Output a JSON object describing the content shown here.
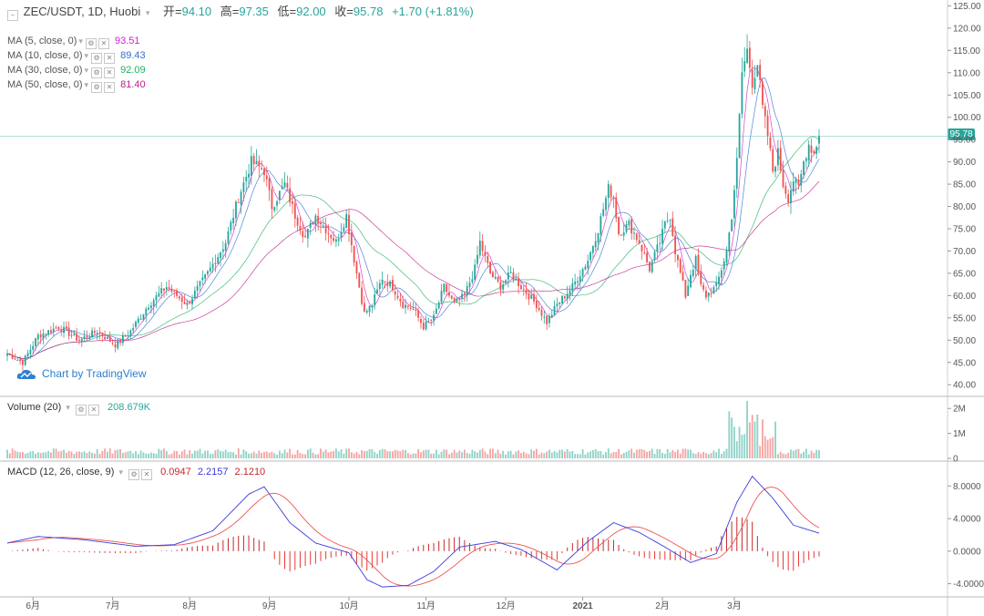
{
  "header": {
    "collapse_icon": "minus-square-icon",
    "symbol": "ZEC/USDT, 1D, Huobi",
    "open_label": "开=",
    "open": "94.10",
    "high_label": "高=",
    "high": "97.35",
    "low_label": "低=",
    "low": "92.00",
    "close_label": "收=",
    "close": "95.78",
    "change": "+1.70 (+1.81%)"
  },
  "ma_legends": [
    {
      "label": "MA (5, close, 0)",
      "value": "93.51",
      "color": "#d020d0"
    },
    {
      "label": "MA (10, close, 0)",
      "value": "89.43",
      "color": "#3070d0"
    },
    {
      "label": "MA (30, close, 0)",
      "value": "92.09",
      "color": "#20b060"
    },
    {
      "label": "MA (50, close, 0)",
      "value": "81.40",
      "color": "#c0208a"
    }
  ],
  "volume_legend": {
    "label": "Volume (20)",
    "value": "208.679K"
  },
  "macd_legend": {
    "label": "MACD (12, 26, close, 9)",
    "hist": "0.0947",
    "macd": "2.2157",
    "signal": "2.1210"
  },
  "watermark": "Chart by TradingView",
  "last_price_tag": "95.78",
  "colors": {
    "up": "#26a69a",
    "down": "#ef5350",
    "up_vol": "#8fd3c8",
    "down_vol": "#f5a5a3",
    "macd_line": "#3b3bdc",
    "signal_line": "#ef5350",
    "ma5": "#d020d0",
    "ma10": "#3070d0",
    "ma30": "#20b060",
    "ma50": "#c0208a"
  },
  "chart_data": {
    "type": "candlestick",
    "price_axis": {
      "ticks": [
        "125.00",
        "120.00",
        "115.00",
        "110.00",
        "105.00",
        "100.00",
        "95.00",
        "90.00",
        "85.00",
        "80.00",
        "75.00",
        "70.00",
        "65.00",
        "60.00",
        "55.00",
        "50.00",
        "45.00",
        "40.00"
      ],
      "ylim": [
        38,
        125.5
      ]
    },
    "volume_axis": {
      "ticks": [
        "2M",
        "1M",
        "0"
      ],
      "ylim": [
        0,
        2.3
      ]
    },
    "macd_axis": {
      "ticks": [
        "8.0000",
        "4.0000",
        "0.0000",
        "-4.0000"
      ],
      "ylim": [
        -5.5,
        10.5
      ]
    },
    "x_labels": [
      "6月",
      "7月",
      "8月",
      "9月",
      "10月",
      "11月",
      "12月",
      "2021",
      "2月",
      "3月"
    ],
    "close_anchors": [
      [
        0,
        47
      ],
      [
        6,
        45
      ],
      [
        12,
        51
      ],
      [
        20,
        53
      ],
      [
        28,
        50
      ],
      [
        35,
        52
      ],
      [
        42,
        49
      ],
      [
        48,
        52
      ],
      [
        55,
        58
      ],
      [
        62,
        62
      ],
      [
        70,
        58
      ],
      [
        78,
        65
      ],
      [
        85,
        72
      ],
      [
        90,
        82
      ],
      [
        95,
        90
      ],
      [
        100,
        88
      ],
      [
        103,
        80
      ],
      [
        108,
        85
      ],
      [
        112,
        78
      ],
      [
        116,
        73
      ],
      [
        120,
        78
      ],
      [
        124,
        75
      ],
      [
        128,
        72
      ],
      [
        132,
        78
      ],
      [
        136,
        65
      ],
      [
        139,
        56
      ],
      [
        142,
        58
      ],
      [
        146,
        64
      ],
      [
        150,
        62
      ],
      [
        154,
        58
      ],
      [
        158,
        57
      ],
      [
        162,
        53
      ],
      [
        166,
        55
      ],
      [
        170,
        62
      ],
      [
        174,
        58
      ],
      [
        178,
        60
      ],
      [
        182,
        66
      ],
      [
        184,
        72
      ],
      [
        188,
        65
      ],
      [
        192,
        62
      ],
      [
        196,
        65
      ],
      [
        200,
        62
      ],
      [
        206,
        58
      ],
      [
        210,
        54
      ],
      [
        214,
        58
      ],
      [
        220,
        62
      ],
      [
        226,
        68
      ],
      [
        230,
        75
      ],
      [
        234,
        84
      ],
      [
        236,
        82
      ],
      [
        238,
        74
      ],
      [
        242,
        76
      ],
      [
        246,
        72
      ],
      [
        250,
        66
      ],
      [
        254,
        72
      ],
      [
        256,
        76
      ],
      [
        258,
        78
      ],
      [
        260,
        70
      ],
      [
        262,
        65
      ],
      [
        264,
        60
      ],
      [
        266,
        65
      ],
      [
        268,
        68
      ],
      [
        270,
        62
      ],
      [
        272,
        60
      ],
      [
        276,
        62
      ],
      [
        280,
        70
      ],
      [
        282,
        78
      ],
      [
        284,
        90
      ],
      [
        286,
        110
      ],
      [
        288,
        115
      ],
      [
        290,
        108
      ],
      [
        292,
        112
      ],
      [
        294,
        102
      ],
      [
        296,
        96
      ],
      [
        298,
        88
      ],
      [
        300,
        92
      ],
      [
        302,
        85
      ],
      [
        304,
        82
      ],
      [
        306,
        86
      ],
      [
        308,
        84
      ],
      [
        310,
        90
      ],
      [
        312,
        94
      ],
      [
        314,
        92
      ],
      [
        316,
        95.78
      ]
    ],
    "macd_anchors": [
      [
        0,
        1.0
      ],
      [
        12,
        1.8
      ],
      [
        30,
        1.4
      ],
      [
        50,
        0.6
      ],
      [
        65,
        0.8
      ],
      [
        80,
        2.5
      ],
      [
        94,
        7
      ],
      [
        100,
        7.9
      ],
      [
        110,
        3.5
      ],
      [
        120,
        1.0
      ],
      [
        133,
        -0.2
      ],
      [
        140,
        -3.5
      ],
      [
        146,
        -4.4
      ],
      [
        156,
        -4.2
      ],
      [
        166,
        -2.5
      ],
      [
        176,
        0.5
      ],
      [
        190,
        1.2
      ],
      [
        200,
        0.2
      ],
      [
        214,
        -2.3
      ],
      [
        226,
        1.2
      ],
      [
        236,
        3.5
      ],
      [
        246,
        2.3
      ],
      [
        256,
        0.5
      ],
      [
        266,
        -1.4
      ],
      [
        276,
        -0.3
      ],
      [
        284,
        6
      ],
      [
        290,
        9.2
      ],
      [
        298,
        6.5
      ],
      [
        306,
        3.2
      ],
      [
        316,
        2.2157
      ]
    ]
  }
}
